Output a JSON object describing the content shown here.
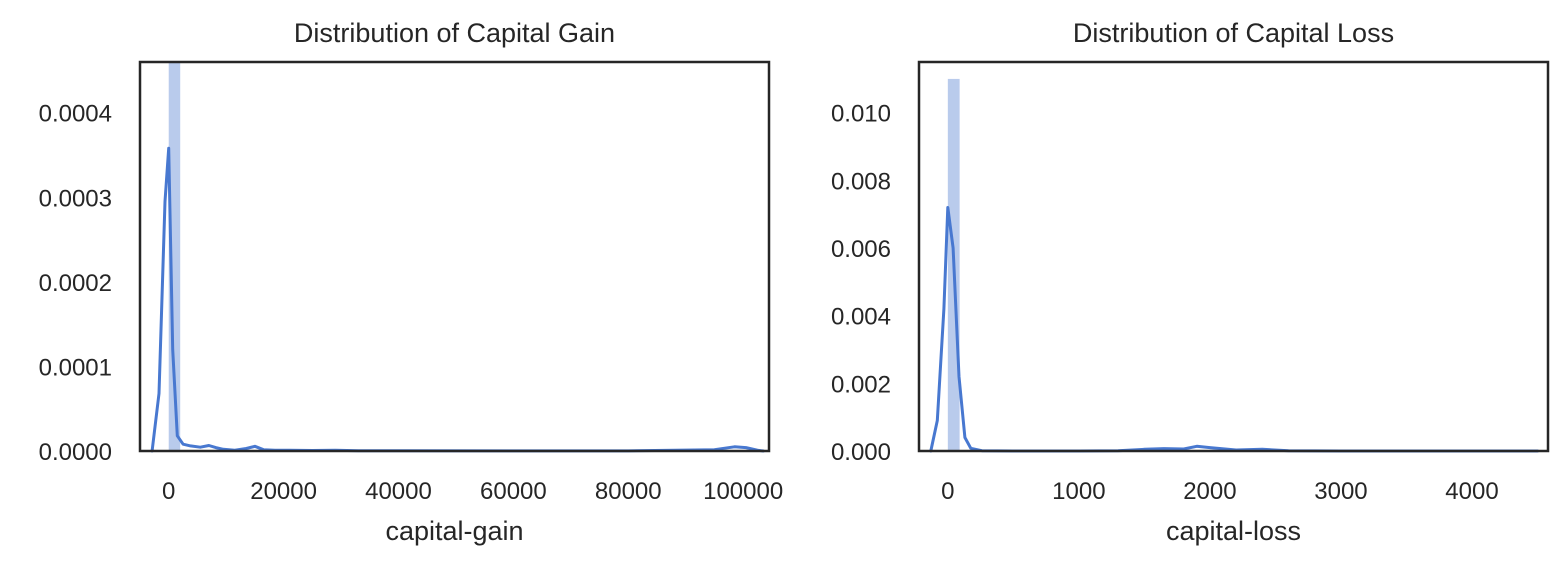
{
  "chart_data": [
    {
      "type": "line",
      "title": "Distribution of Capital Gain",
      "xlabel": "capital-gain",
      "ylabel": "",
      "xlim": [
        -5000,
        104500
      ],
      "ylim": [
        0,
        0.00046
      ],
      "xticks": [
        0,
        20000,
        40000,
        60000,
        80000,
        100000
      ],
      "xtick_labels": [
        "0",
        "20000",
        "40000",
        "60000",
        "80000",
        "100000"
      ],
      "yticks": [
        0,
        0.0001,
        0.0002,
        0.0003,
        0.0004
      ],
      "ytick_labels": [
        "0.0000",
        "0.0001",
        "0.0002",
        "0.0003",
        "0.0004"
      ],
      "grid": false,
      "histogram": [
        {
          "x0": 0,
          "x1": 2000,
          "density": 0.00046
        }
      ],
      "kde": {
        "x": [
          -2900,
          -1700,
          -650,
          0,
          700,
          1500,
          2500,
          3800,
          5500,
          7000,
          8200,
          9500,
          11500,
          13500,
          15000,
          16500,
          18500,
          21000,
          25000,
          29000,
          33000,
          40000,
          60000,
          80000,
          95000,
          98500,
          100500,
          102500,
          103500
        ],
        "y": [
          0,
          6.8e-05,
          0.000295,
          0.000358,
          0.00012,
          1.8e-05,
          8e-06,
          6e-06,
          4.5e-06,
          6.5e-06,
          4e-06,
          2e-06,
          1e-06,
          3e-06,
          5.5e-06,
          1.5e-06,
          1e-06,
          8e-07,
          6e-07,
          8e-07,
          3e-07,
          2e-07,
          1e-07,
          1e-07,
          1.5e-06,
          5e-06,
          4e-06,
          1e-06,
          0
        ]
      },
      "colors": {
        "line": "#4878d0",
        "hist": "#b9cbec",
        "frame": "#262626"
      }
    },
    {
      "type": "line",
      "title": "Distribution of Capital Loss",
      "xlabel": "capital-loss",
      "ylabel": "",
      "xlim": [
        -220,
        4580
      ],
      "ylim": [
        0,
        0.0115
      ],
      "xticks": [
        0,
        1000,
        2000,
        3000,
        4000
      ],
      "xtick_labels": [
        "0",
        "1000",
        "2000",
        "3000",
        "4000"
      ],
      "yticks": [
        0,
        0.002,
        0.004,
        0.006,
        0.008,
        0.01
      ],
      "ytick_labels": [
        "0.000",
        "0.002",
        "0.004",
        "0.006",
        "0.008",
        "0.010"
      ],
      "grid": false,
      "histogram": [
        {
          "x0": 0,
          "x1": 90,
          "density": 0.011
        }
      ],
      "kde": {
        "x": [
          -130,
          -80,
          -30,
          0,
          40,
          85,
          130,
          175,
          260,
          500,
          1000,
          1300,
          1500,
          1650,
          1800,
          1900,
          2000,
          2200,
          2400,
          2600,
          3000,
          3500,
          4000,
          4500
        ],
        "y": [
          0,
          0.0009,
          0.0042,
          0.0072,
          0.006,
          0.0022,
          0.0004,
          8e-05,
          1e-05,
          0,
          0,
          1e-05,
          5e-05,
          7e-05,
          6e-05,
          0.00014,
          0.0001,
          3e-05,
          5e-05,
          1e-05,
          0,
          0,
          0,
          0
        ]
      },
      "colors": {
        "line": "#4878d0",
        "hist": "#b9cbec",
        "frame": "#262626"
      }
    }
  ]
}
